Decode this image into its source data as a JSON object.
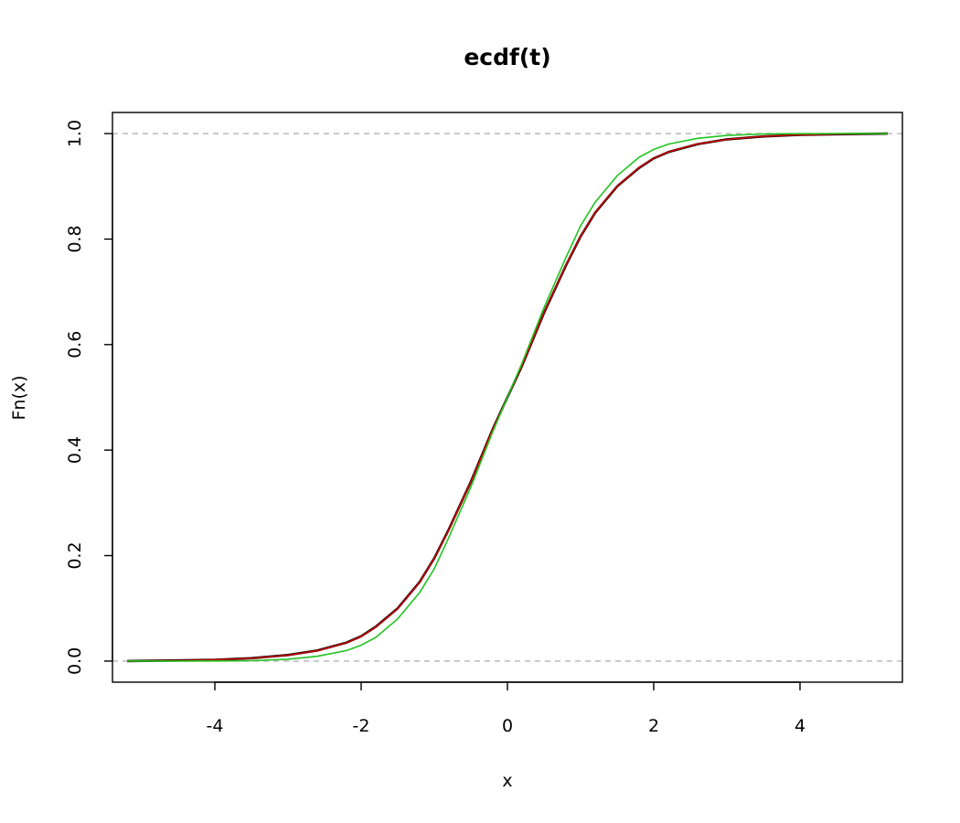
{
  "chart_data": {
    "type": "line",
    "title": "ecdf(t)",
    "xlabel": "x",
    "ylabel": "Fn(x)",
    "xlim": [
      -5.4,
      5.4
    ],
    "ylim": [
      -0.04,
      1.04
    ],
    "x_ticks": [
      "-4",
      "-2",
      "0",
      "2",
      "4"
    ],
    "y_ticks": [
      "0.0",
      "0.2",
      "0.4",
      "0.6",
      "0.8",
      "1.0"
    ],
    "reference_lines": [
      0,
      1
    ],
    "grid": false,
    "series": [
      {
        "color": "#000000",
        "x": [
          -5.2,
          -4.5,
          -4,
          -3.5,
          -3,
          -2.6,
          -2.2,
          -2,
          -1.8,
          -1.5,
          -1.2,
          -1,
          -0.8,
          -0.5,
          -0.2,
          0,
          0.2,
          0.5,
          0.8,
          1,
          1.2,
          1.5,
          1.8,
          2,
          2.2,
          2.6,
          3,
          3.5,
          4,
          4.5,
          5.2
        ],
        "y": [
          0,
          0.0012,
          0.0025,
          0.0055,
          0.0115,
          0.02,
          0.035,
          0.047,
          0.065,
          0.1,
          0.15,
          0.195,
          0.25,
          0.34,
          0.44,
          0.5,
          0.56,
          0.66,
          0.75,
          0.805,
          0.85,
          0.9,
          0.935,
          0.953,
          0.965,
          0.98,
          0.989,
          0.9945,
          0.9975,
          0.9988,
          1
        ]
      },
      {
        "color": "#cc0000",
        "x": [
          -5.2,
          -4.5,
          -4,
          -3.5,
          -3,
          -2.6,
          -2.2,
          -2,
          -1.8,
          -1.5,
          -1.2,
          -1,
          -0.8,
          -0.5,
          -0.2,
          0,
          0.2,
          0.5,
          0.8,
          1,
          1.2,
          1.5,
          1.8,
          2,
          2.2,
          2.6,
          3,
          3.5,
          4,
          4.5,
          5.2
        ],
        "y": [
          0,
          0.0011,
          0.0024,
          0.0053,
          0.0112,
          0.0197,
          0.0347,
          0.0466,
          0.0646,
          0.0995,
          0.1495,
          0.1945,
          0.2495,
          0.3395,
          0.4397,
          0.5,
          0.5603,
          0.6605,
          0.7505,
          0.8055,
          0.8505,
          0.9005,
          0.9354,
          0.9534,
          0.9653,
          0.9803,
          0.9888,
          0.9947,
          0.9976,
          0.9989,
          1
        ]
      },
      {
        "color": "#1fc41f",
        "x": [
          -5.2,
          -4.5,
          -4,
          -3.5,
          -3,
          -2.6,
          -2.2,
          -2,
          -1.8,
          -1.5,
          -1.2,
          -1,
          -0.8,
          -0.5,
          -0.2,
          0,
          0.2,
          0.5,
          0.8,
          1,
          1.2,
          1.5,
          1.8,
          2,
          2.2,
          2.6,
          3,
          3.5,
          4,
          4.5,
          5.2
        ],
        "y": [
          0,
          2e-05,
          0.00015,
          0.0008,
          0.0035,
          0.009,
          0.02,
          0.03,
          0.045,
          0.08,
          0.13,
          0.175,
          0.235,
          0.33,
          0.435,
          0.5,
          0.565,
          0.67,
          0.765,
          0.825,
          0.87,
          0.92,
          0.955,
          0.97,
          0.98,
          0.991,
          0.9965,
          0.9992,
          0.9998,
          0.99998,
          1
        ]
      }
    ]
  }
}
